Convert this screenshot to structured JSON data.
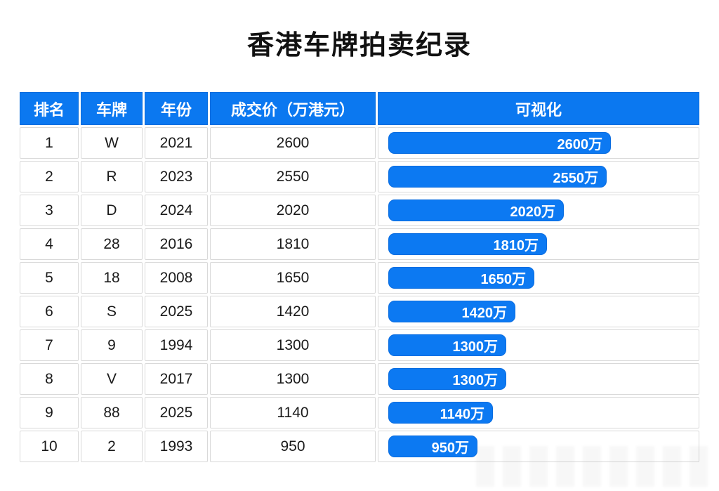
{
  "page": {
    "title": "香港车牌拍卖纪录"
  },
  "colors": {
    "header_bg": "#0b78f0",
    "bar": "#0c79f2",
    "bar_text": "#ffffff",
    "cell_border": "#d9d9d9",
    "text": "#1a1a1a"
  },
  "table": {
    "headers": [
      "排名",
      "车牌",
      "年份",
      "成交价（万港元）",
      "可视化"
    ],
    "max_value": 2600,
    "rows": [
      {
        "rank": "1",
        "plate": "W",
        "year": "2021",
        "price": "2600",
        "value": 2600,
        "bar_label": "2600万"
      },
      {
        "rank": "2",
        "plate": "R",
        "year": "2023",
        "price": "2550",
        "value": 2550,
        "bar_label": "2550万"
      },
      {
        "rank": "3",
        "plate": "D",
        "year": "2024",
        "price": "2020",
        "value": 2020,
        "bar_label": "2020万"
      },
      {
        "rank": "4",
        "plate": "28",
        "year": "2016",
        "price": "1810",
        "value": 1810,
        "bar_label": "1810万"
      },
      {
        "rank": "5",
        "plate": "18",
        "year": "2008",
        "price": "1650",
        "value": 1650,
        "bar_label": "1650万"
      },
      {
        "rank": "6",
        "plate": "S",
        "year": "2025",
        "price": "1420",
        "value": 1420,
        "bar_label": "1420万"
      },
      {
        "rank": "7",
        "plate": "9",
        "year": "1994",
        "price": "1300",
        "value": 1300,
        "bar_label": "1300万"
      },
      {
        "rank": "8",
        "plate": "V",
        "year": "2017",
        "price": "1300",
        "value": 1300,
        "bar_label": "1300万"
      },
      {
        "rank": "9",
        "plate": "88",
        "year": "2025",
        "price": "1140",
        "value": 1140,
        "bar_label": "1140万"
      },
      {
        "rank": "10",
        "plate": "2",
        "year": "1993",
        "price": "950",
        "value": 950,
        "bar_label": "950万"
      }
    ]
  },
  "chart_data": {
    "type": "bar",
    "orientation": "horizontal",
    "title": "香港车牌拍卖纪录",
    "categories": [
      "W",
      "R",
      "D",
      "28",
      "18",
      "S",
      "9",
      "V",
      "88",
      "2"
    ],
    "values": [
      2600,
      2550,
      2020,
      1810,
      1650,
      1420,
      1300,
      1300,
      1140,
      950
    ],
    "bar_labels": [
      "2600万",
      "2550万",
      "2020万",
      "1810万",
      "1650万",
      "1420万",
      "1300万",
      "1300万",
      "1140万",
      "950万"
    ],
    "years": [
      2021,
      2023,
      2024,
      2016,
      2008,
      2025,
      1994,
      2017,
      2025,
      1993
    ],
    "xlabel": "成交价（万港元）",
    "ylabel": "车牌",
    "xlim": [
      0,
      2600
    ],
    "grid": false,
    "legend_position": "none",
    "bar_color": "#0c79f2"
  }
}
